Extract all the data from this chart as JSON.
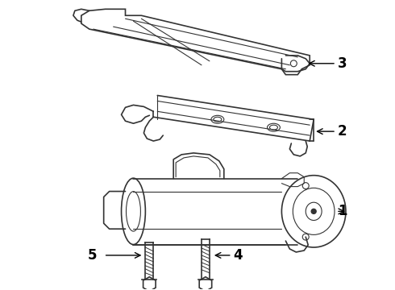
{
  "background_color": "#ffffff",
  "line_color": "#333333",
  "label_color": "#000000",
  "label_fontsize": 12,
  "label_fontweight": "bold",
  "arrow_color": "#000000",
  "figsize": [
    4.9,
    3.6
  ],
  "dpi": 100
}
